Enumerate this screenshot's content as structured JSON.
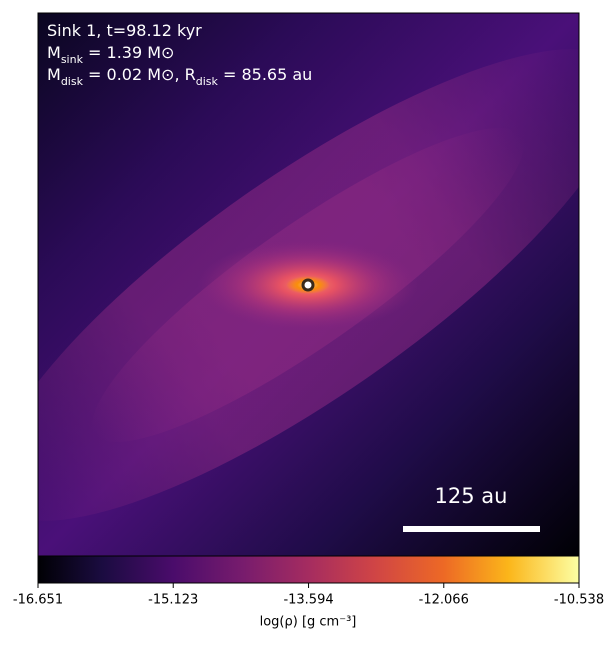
{
  "chart_data": {
    "type": "density-map",
    "annotations": [
      [
        "Sink 1, t=98.12 kyr"
      ],
      [
        "M",
        "sink",
        " = 1.39 M⊙"
      ],
      [
        "M",
        "disk",
        " = 0.02 M⊙, R",
        "disk",
        " = 85.65 au"
      ]
    ],
    "scale_bar_label": "125 au",
    "colorbar": {
      "label": "log(ρ) [g cm⁻³]",
      "lim": [
        -16.651,
        -10.538
      ],
      "ticks": [
        -16.651,
        -15.123,
        -13.594,
        -12.066,
        -10.538
      ]
    }
  }
}
